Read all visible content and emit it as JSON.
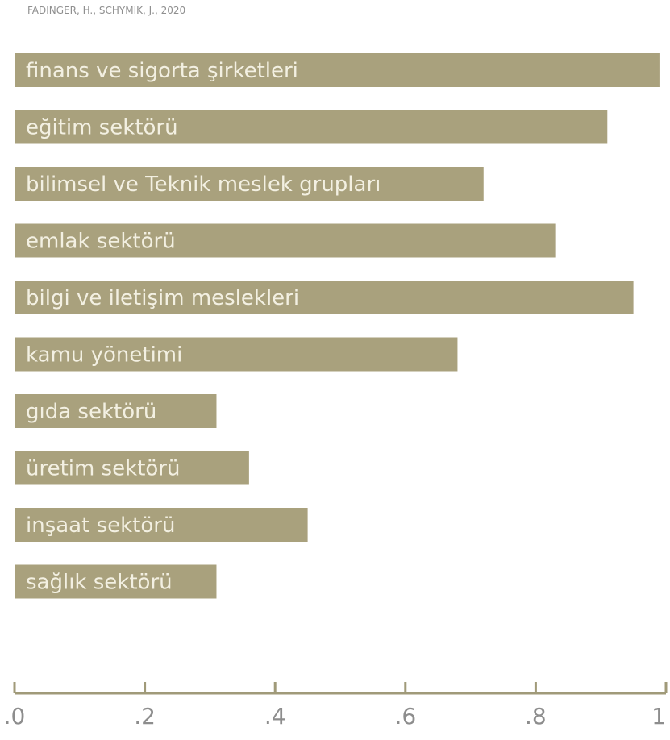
{
  "source": "FADINGER, H., SCHYMIK, J., 2020",
  "colors": {
    "bar": "#a9a17d",
    "axis": "#a09a79",
    "bar_text": "#f3f0e2",
    "tick_text": "#8d8d8d"
  },
  "chart_data": {
    "type": "bar",
    "orientation": "horizontal",
    "categories": [
      "finans ve sigorta şirketleri",
      "eğitim sektörü",
      "bilimsel ve Teknik meslek grupları",
      "emlak sektörü",
      "bilgi ve iletişim meslekleri",
      "kamu yönetimi",
      "gıda sektörü",
      "üretim sektörü",
      "inşaat sektörü",
      "sağlık sektörü"
    ],
    "values": [
      0.99,
      0.91,
      0.72,
      0.83,
      0.95,
      0.68,
      0.31,
      0.36,
      0.45,
      0.31
    ],
    "xlim": [
      0,
      1
    ],
    "ticks": [
      0,
      0.2,
      0.4,
      0.6,
      0.8,
      1.0
    ],
    "tick_labels": [
      ".0",
      ".2",
      ".4",
      ".6",
      ".8",
      "1"
    ],
    "title": "",
    "xlabel": "",
    "ylabel": "",
    "grid": false,
    "legend": "none"
  }
}
